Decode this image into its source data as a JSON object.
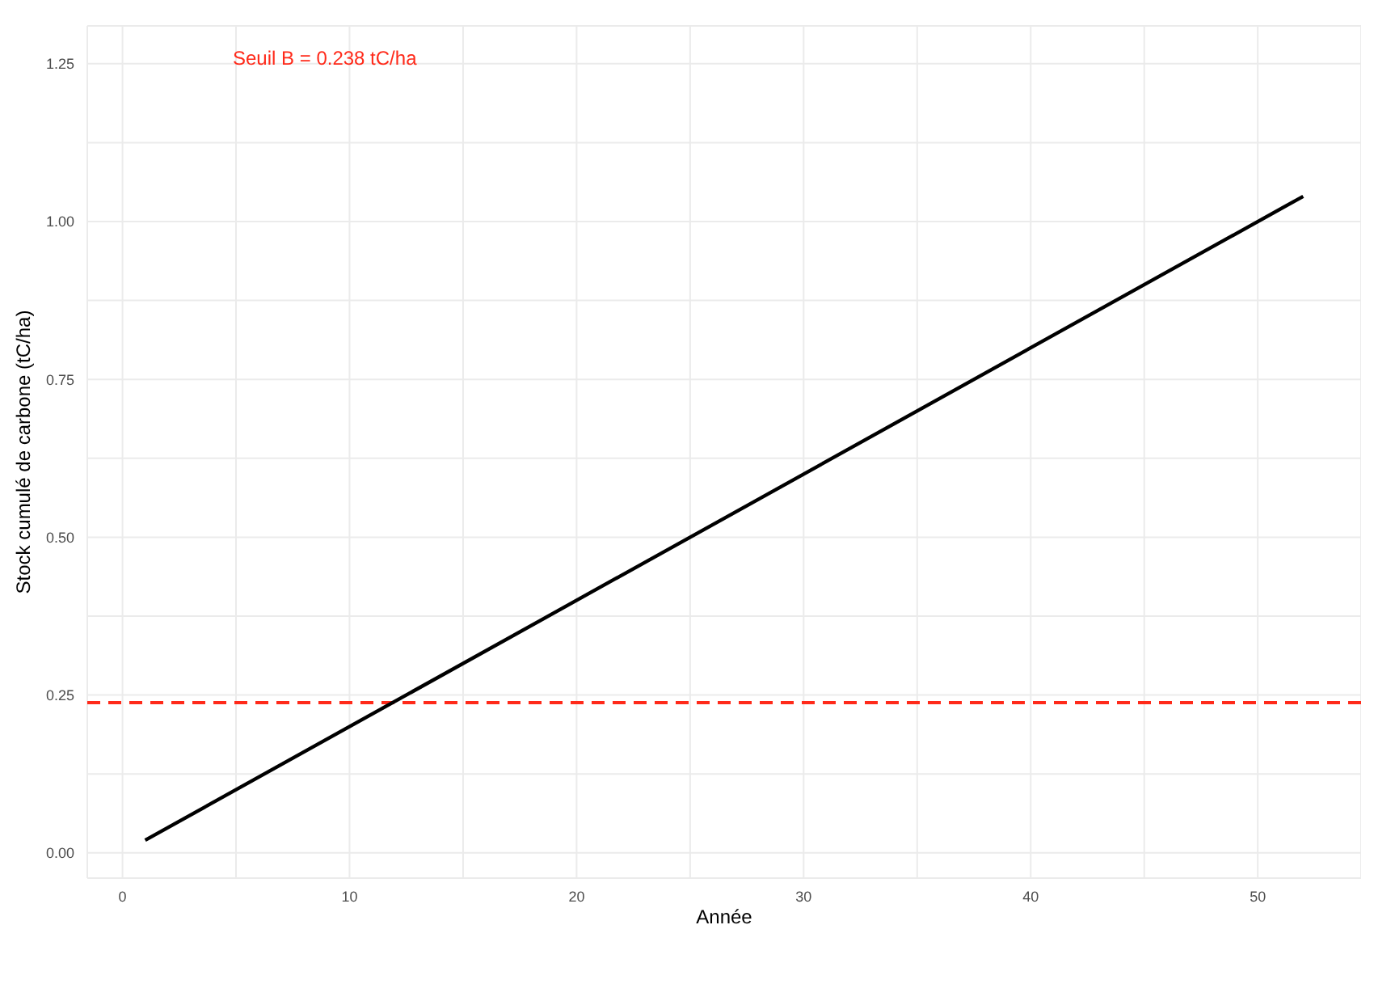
{
  "chart_data": {
    "type": "line",
    "xlabel": "Année",
    "ylabel": "Stock cumulé de carbone (tC/ha)",
    "x": [
      1,
      52
    ],
    "series": [
      {
        "color": "#000000",
        "values": [
          0.02,
          1.04
        ]
      }
    ],
    "xlim": [
      -1.55,
      54.55
    ],
    "xticks": [
      0,
      {
        "value": 5,
        "label": null
      },
      10,
      {
        "value": 15,
        "label": null
      },
      20,
      {
        "value": 25,
        "label": null
      },
      30,
      {
        "value": 35,
        "label": null
      },
      40,
      {
        "value": 45,
        "label": null
      },
      50
    ],
    "ylim": [
      -0.04,
      1.31
    ],
    "yticks": [
      {
        "value": 0,
        "label": "0.00"
      },
      {
        "value": 0.125,
        "label": null
      },
      {
        "value": 0.25,
        "label": "0.25"
      },
      {
        "value": 0.375,
        "label": null
      },
      {
        "value": 0.5,
        "label": "0.50"
      },
      {
        "value": 0.625,
        "label": null
      },
      {
        "value": 0.75,
        "label": "0.75"
      },
      {
        "value": 0.875,
        "label": null
      },
      {
        "value": 1,
        "label": "1.00"
      },
      {
        "value": 1.125,
        "label": null
      },
      {
        "value": 1.25,
        "label": "1.25"
      }
    ],
    "ref_lines": [
      {
        "axis": "y",
        "value": 0.238,
        "label": "Seuil B = 0.238 tC/ha",
        "color": "#ff2a1a",
        "line_style": "dashed"
      }
    ],
    "grid": true,
    "marker": "none",
    "line_style": "solid"
  }
}
